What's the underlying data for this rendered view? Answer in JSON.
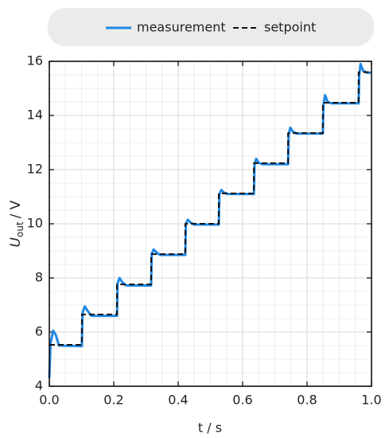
{
  "chart_data": {
    "type": "line",
    "xlabel": "t / s",
    "ylabel": {
      "symbol": "U",
      "subscript": "out",
      "unit": "/ V"
    },
    "legend": "upper center",
    "grid": true,
    "xlim": [
      0,
      1.0
    ],
    "xticks": [
      {
        "value": 0,
        "label": "0.0"
      },
      0.2,
      0.4,
      0.6,
      0.8,
      {
        "value": 1,
        "label": "1.0"
      }
    ],
    "ylim": [
      4,
      16
    ],
    "yticks": [
      4,
      6,
      8,
      10,
      12,
      14,
      16
    ],
    "series": [
      {
        "name": "measurement",
        "color": "#1e88e5",
        "style": "solid",
        "x": [
          0,
          0.004,
          0.012,
          0.02,
          0.03,
          0.101,
          0.103,
          0.11,
          0.118,
          0.13,
          0.21,
          0.212,
          0.218,
          0.226,
          0.238,
          0.316,
          0.318,
          0.324,
          0.332,
          0.344,
          0.422,
          0.424,
          0.43,
          0.438,
          0.45,
          0.526,
          0.528,
          0.534,
          0.542,
          0.554,
          0.635,
          0.637,
          0.642,
          0.65,
          0.662,
          0.741,
          0.743,
          0.748,
          0.756,
          0.768,
          0.849,
          0.851,
          0.856,
          0.864,
          0.876,
          0.96,
          0.962,
          0.966,
          0.974,
          0.986,
          1.0
        ],
        "values": [
          4.3,
          5.6,
          6.05,
          5.9,
          5.5,
          5.48,
          6.7,
          6.95,
          6.8,
          6.6,
          6.6,
          7.8,
          8.0,
          7.85,
          7.72,
          7.72,
          8.9,
          9.05,
          8.95,
          8.85,
          8.85,
          10.0,
          10.15,
          10.05,
          9.97,
          9.97,
          11.1,
          11.25,
          11.15,
          11.1,
          11.1,
          12.2,
          12.4,
          12.25,
          12.2,
          12.2,
          13.3,
          13.55,
          13.4,
          13.33,
          13.33,
          14.4,
          14.75,
          14.5,
          14.45,
          14.45,
          15.5,
          15.9,
          15.65,
          15.58,
          15.58
        ]
      },
      {
        "name": "setpoint",
        "color": "#111111",
        "style": "dashed",
        "x": [
          0,
          0.101,
          0.101,
          0.21,
          0.21,
          0.316,
          0.316,
          0.422,
          0.422,
          0.526,
          0.526,
          0.635,
          0.635,
          0.741,
          0.741,
          0.849,
          0.849,
          0.96,
          0.96,
          1.0
        ],
        "values": [
          5.53,
          5.53,
          6.65,
          6.65,
          7.76,
          7.76,
          8.88,
          8.88,
          10.0,
          10.0,
          11.12,
          11.12,
          12.24,
          12.24,
          13.35,
          13.35,
          14.47,
          14.47,
          15.6,
          15.6
        ]
      }
    ]
  }
}
